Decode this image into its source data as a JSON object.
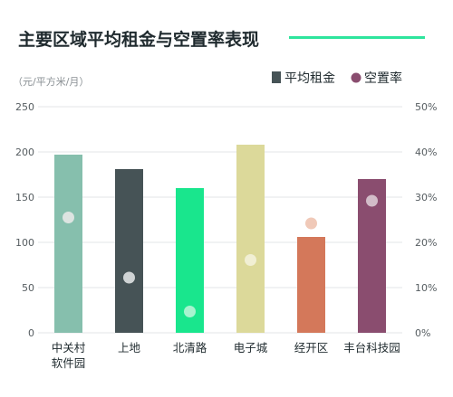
{
  "chart_data": {
    "type": "bar",
    "title": "主要区域平均租金与空置率表现",
    "y_unit_label": "（元/平方米/月）",
    "categories": [
      [
        "中关村",
        "软件园"
      ],
      [
        "上地"
      ],
      [
        "北清路"
      ],
      [
        "电子城"
      ],
      [
        "经开区"
      ],
      [
        "丰台科技园"
      ]
    ],
    "series": [
      {
        "name": "平均租金",
        "kind": "bar",
        "axis": "left",
        "values": [
          197,
          181,
          160,
          208,
          106,
          170
        ],
        "colors": [
          "#86bfad",
          "#465356",
          "#19e68d",
          "#dcd99a",
          "#d4785a",
          "#8a4d6f"
        ]
      },
      {
        "name": "空置率",
        "kind": "point",
        "axis": "right",
        "values": [
          25.5,
          12.2,
          4.7,
          16.1,
          24.2,
          29.2
        ],
        "unit": "%",
        "colors": [
          "#dde4e1",
          "#cfd3d4",
          "#a7f3cf",
          "#f1efd4",
          "#f0c9b8",
          "#d2bcc8"
        ]
      }
    ],
    "y_left": {
      "min": 0,
      "max": 250,
      "ticks": [
        0,
        50,
        100,
        150,
        200,
        250
      ]
    },
    "y_right": {
      "min": 0,
      "max": 50,
      "ticks": [
        "0%",
        "10%",
        "20%",
        "30%",
        "40%",
        "50%"
      ]
    },
    "legend": {
      "placement": "top-right",
      "items": [
        {
          "label": "平均租金",
          "marker": "square",
          "color": "#465356"
        },
        {
          "label": "空置率",
          "marker": "circle",
          "color": "#8a4d6f"
        }
      ]
    },
    "grid": true,
    "accent_color": "#2ee59d"
  }
}
